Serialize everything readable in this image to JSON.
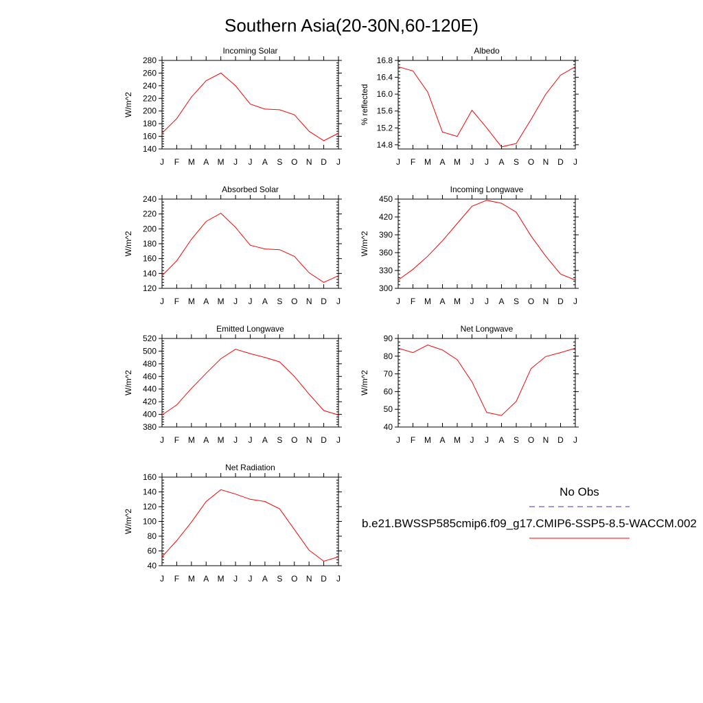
{
  "page": {
    "title": "Southern Asia(20-30N,60-120E)"
  },
  "legend": {
    "obs_label": "No Obs",
    "model_label": "b.e21.BWSSP585cmip6.f09_g17.CMIP6-SSP5-8.5-WACCM.002",
    "obs_color": "#3333cc",
    "model_color": "#ff0000"
  },
  "chart_data": [
    {
      "type": "line",
      "title": "Incoming Solar",
      "ylabel": "W/m^2",
      "categories": [
        "J",
        "F",
        "M",
        "A",
        "M",
        "J",
        "J",
        "A",
        "S",
        "O",
        "N",
        "D",
        "J"
      ],
      "ylim": [
        140,
        280
      ],
      "yticks": [
        140,
        160,
        180,
        200,
        220,
        240,
        260,
        280
      ],
      "ytick_labels": [
        "140",
        "160",
        "180",
        "200",
        "220",
        "240",
        "260",
        "280"
      ],
      "values": [
        165,
        188,
        222,
        248,
        260,
        240,
        211,
        203,
        202,
        194,
        168,
        153,
        165
      ]
    },
    {
      "type": "line",
      "title": "Albedo",
      "ylabel": "% reflected",
      "categories": [
        "J",
        "F",
        "M",
        "A",
        "M",
        "J",
        "J",
        "A",
        "S",
        "O",
        "N",
        "D",
        "J"
      ],
      "ylim": [
        14.7,
        16.8
      ],
      "yticks": [
        14.8,
        15.2,
        15.6,
        16.0,
        16.4,
        16.8
      ],
      "ytick_labels": [
        "14.8",
        "15.2",
        "15.6",
        "16.0",
        "16.4",
        "16.8"
      ],
      "values": [
        16.65,
        16.55,
        16.05,
        15.1,
        15.0,
        15.62,
        15.2,
        14.75,
        14.83,
        15.4,
        16.0,
        16.45,
        16.65
      ]
    },
    {
      "type": "line",
      "title": "Absorbed Solar",
      "ylabel": "W/m^2",
      "categories": [
        "J",
        "F",
        "M",
        "A",
        "M",
        "J",
        "J",
        "A",
        "S",
        "O",
        "N",
        "D",
        "J"
      ],
      "ylim": [
        120,
        240
      ],
      "yticks": [
        120,
        140,
        160,
        180,
        200,
        220,
        240
      ],
      "ytick_labels": [
        "120",
        "140",
        "160",
        "180",
        "200",
        "220",
        "240"
      ],
      "values": [
        137,
        157,
        186,
        210,
        221,
        202,
        178,
        173,
        172,
        163,
        141,
        128,
        137
      ]
    },
    {
      "type": "line",
      "title": "Incoming Longwave",
      "ylabel": "W/m^2",
      "categories": [
        "J",
        "F",
        "M",
        "A",
        "M",
        "J",
        "J",
        "A",
        "S",
        "O",
        "N",
        "D",
        "J"
      ],
      "ylim": [
        300,
        450
      ],
      "yticks": [
        300,
        330,
        360,
        390,
        420,
        450
      ],
      "ytick_labels": [
        "300",
        "330",
        "360",
        "390",
        "420",
        "450"
      ],
      "values": [
        314,
        332,
        354,
        380,
        409,
        438,
        448,
        443,
        428,
        388,
        354,
        324,
        314
      ]
    },
    {
      "type": "line",
      "title": "Emitted Longwave",
      "ylabel": "W/m^2",
      "categories": [
        "J",
        "F",
        "M",
        "A",
        "M",
        "J",
        "J",
        "A",
        "S",
        "O",
        "N",
        "D",
        "J"
      ],
      "ylim": [
        380,
        520
      ],
      "yticks": [
        380,
        400,
        420,
        440,
        460,
        480,
        500,
        520
      ],
      "ytick_labels": [
        "380",
        "400",
        "420",
        "440",
        "460",
        "480",
        "500",
        "520"
      ],
      "values": [
        399,
        415,
        441,
        465,
        488,
        503,
        496,
        490,
        483,
        460,
        432,
        406,
        399
      ]
    },
    {
      "type": "line",
      "title": "Net Longwave",
      "ylabel": "W/m^2",
      "categories": [
        "J",
        "F",
        "M",
        "A",
        "M",
        "J",
        "J",
        "A",
        "S",
        "O",
        "N",
        "D",
        "J"
      ],
      "ylim": [
        40,
        90
      ],
      "yticks": [
        40,
        50,
        60,
        70,
        80,
        90
      ],
      "ytick_labels": [
        "40",
        "50",
        "60",
        "70",
        "80",
        "90"
      ],
      "values": [
        84.5,
        82,
        86.3,
        83.5,
        78,
        65.5,
        48.2,
        46.5,
        54.5,
        73,
        79.8,
        82,
        84.5
      ]
    },
    {
      "type": "line",
      "title": "Net Radiation",
      "ylabel": "W/m^2",
      "categories": [
        "J",
        "F",
        "M",
        "A",
        "M",
        "J",
        "J",
        "A",
        "S",
        "O",
        "N",
        "D",
        "J"
      ],
      "ylim": [
        40,
        160
      ],
      "yticks": [
        40,
        60,
        80,
        100,
        120,
        140,
        160
      ],
      "ytick_labels": [
        "40",
        "60",
        "80",
        "100",
        "120",
        "140",
        "160"
      ],
      "values": [
        52,
        74,
        99,
        127,
        143,
        137,
        130,
        127,
        117,
        89,
        61,
        46,
        52
      ]
    }
  ]
}
